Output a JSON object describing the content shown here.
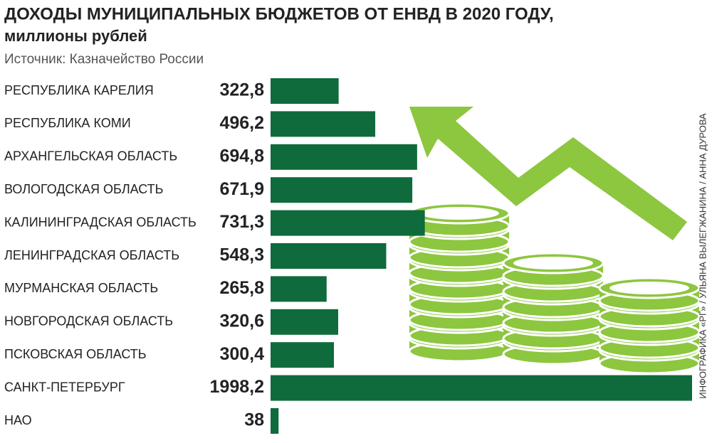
{
  "chart_data": {
    "type": "bar",
    "orientation": "horizontal",
    "title": "ДОХОДЫ МУНИЦИПАЛЬНЫХ БЮДЖЕТОВ ОТ ЕНВД В 2020 ГОДУ,",
    "subtitle": "миллионы рублей",
    "source": "Источник: Казначейство России",
    "credit": "ИНФОГРАФИКА «РГ» / УЛЬЯНА ВЫЛЕГЖАНИНА / АННА ДУРОВА",
    "categories": [
      "РЕСПУБЛИКА КАРЕЛИЯ",
      "РЕСПУБЛИКА КОМИ",
      "АРХАНГЕЛЬСКАЯ ОБЛАСТЬ",
      "ВОЛОГОДСКАЯ ОБЛАСТЬ",
      "КАЛИНИНГРАДСКАЯ ОБЛАСТЬ",
      "ЛЕНИНГРАДСКАЯ ОБЛАСТЬ",
      "МУРМАНСКАЯ ОБЛАСТЬ",
      "НОВГОРОДСКАЯ ОБЛАСТЬ",
      "ПСКОВСКАЯ ОБЛАСТЬ",
      "САНКТ-ПЕТЕРБУРГ",
      "НАО"
    ],
    "values": [
      322.8,
      496.2,
      694.8,
      671.9,
      731.3,
      548.3,
      265.8,
      320.6,
      300.4,
      1998.2,
      38
    ],
    "value_labels": [
      "322,8",
      "496,2",
      "694,8",
      "671,9",
      "731,3",
      "548,3",
      "265,8",
      "320,6",
      "300,4",
      "1998,2",
      "38"
    ],
    "color": "#0f6b3b"
  }
}
